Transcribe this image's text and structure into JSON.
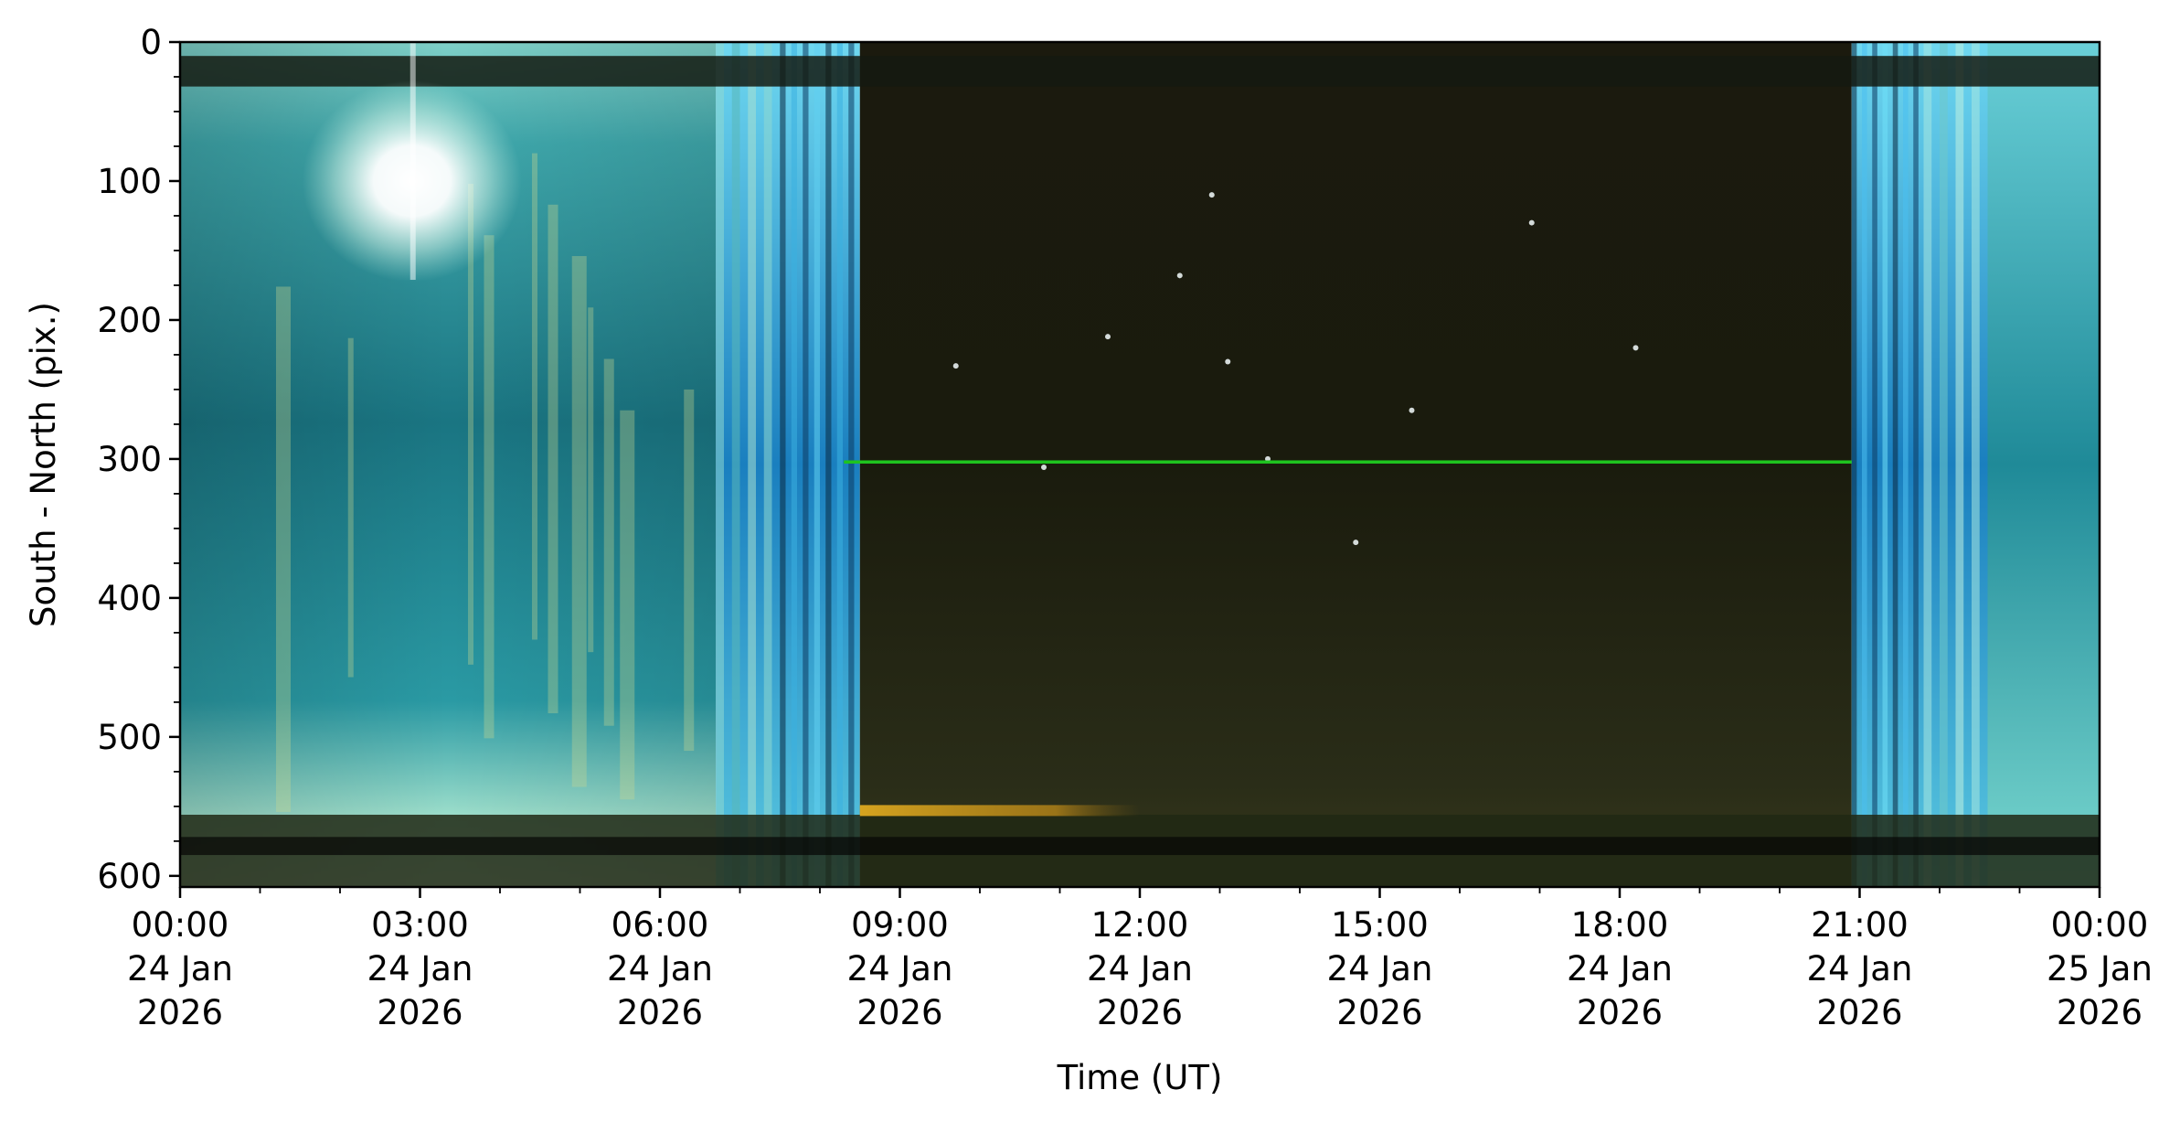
{
  "chart_data": {
    "type": "heatmap",
    "title": "",
    "xlabel": "Time (UT)",
    "ylabel": "South - North (pix.)",
    "x_axis": {
      "unit": "hours since 00:00 UT 24 Jan 2026",
      "range": [
        0,
        24
      ],
      "tick_values": [
        0,
        3,
        6,
        9,
        12,
        15,
        18,
        21,
        24
      ],
      "tick_labels": [
        [
          "00:00",
          "24 Jan",
          "2026"
        ],
        [
          "03:00",
          "24 Jan",
          "2026"
        ],
        [
          "06:00",
          "24 Jan",
          "2026"
        ],
        [
          "09:00",
          "24 Jan",
          "2026"
        ],
        [
          "12:00",
          "24 Jan",
          "2026"
        ],
        [
          "15:00",
          "24 Jan",
          "2026"
        ],
        [
          "18:00",
          "24 Jan",
          "2026"
        ],
        [
          "21:00",
          "24 Jan",
          "2026"
        ],
        [
          "00:00",
          "25 Jan",
          "2026"
        ]
      ]
    },
    "y_axis": {
      "range": [
        0,
        608
      ],
      "inverted": true,
      "tick_values": [
        0,
        100,
        200,
        300,
        400,
        500,
        600
      ],
      "tick_labels": [
        "0",
        "100",
        "200",
        "300",
        "400",
        "500",
        "600"
      ]
    },
    "grid": false,
    "legend": "none",
    "image_segments": [
      {
        "name": "daytime",
        "x_start": 0,
        "x_end": 6.7,
        "color": "#1e7f8a"
      },
      {
        "name": "morning-twilight",
        "x_start": 6.7,
        "x_end": 8.5,
        "color": "#1b8fbf"
      },
      {
        "name": "night",
        "x_start": 8.5,
        "x_end": 20.9,
        "color": "#1a1a0c"
      },
      {
        "name": "evening-twilight",
        "x_start": 20.9,
        "x_end": 22.6,
        "color": "#1a8fc4"
      },
      {
        "name": "daytime-evening",
        "x_start": 22.6,
        "x_end": 24,
        "color": "#2a9aa0"
      }
    ],
    "features": [
      {
        "name": "sun",
        "x": 2.9,
        "y": 100,
        "color": "#ffffff"
      },
      {
        "name": "green-line",
        "x_start": 8.3,
        "x_end": 20.9,
        "y": 302,
        "color": "#1fc41f"
      },
      {
        "name": "horizon-glow",
        "x_start": 8.5,
        "x_end": 12.0,
        "y": 553,
        "color": "#e0a820"
      },
      {
        "name": "top-dark-band",
        "y_start": 10,
        "y_end": 32,
        "color": "#141a10"
      },
      {
        "name": "bottom-dark-band",
        "y_start": 556,
        "y_end": 608,
        "color": "#202814"
      }
    ],
    "colors": {
      "axis": "#000000",
      "background": "#ffffff"
    }
  }
}
